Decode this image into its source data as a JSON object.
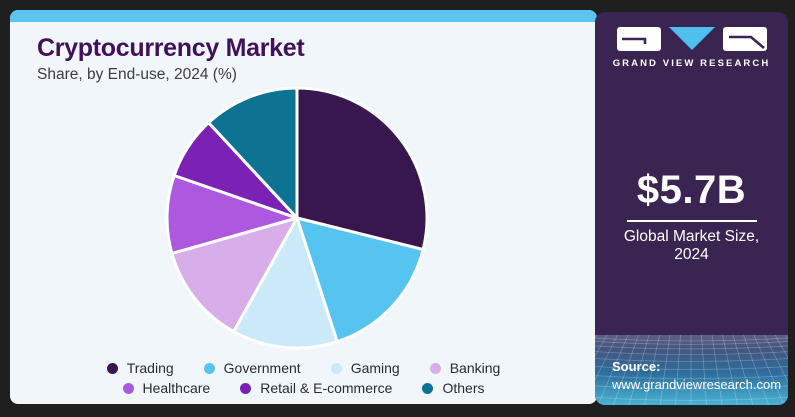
{
  "header": {
    "title": "Cryptocurrency Market",
    "subtitle": "Share, by End-use, 2024 (%)"
  },
  "chart_data": {
    "type": "pie",
    "title": "Cryptocurrency Market Share, by End-use, 2024 (%)",
    "unit": "%",
    "direction": "clockwise",
    "start_angle_deg": 0,
    "legend_position": "bottom",
    "separator_color": "#FFFFFF",
    "slices": [
      {
        "label": "Trading",
        "value": 28.9,
        "color": "#38164E"
      },
      {
        "label": "Government",
        "value": 16.1,
        "color": "#55C4F1"
      },
      {
        "label": "Gaming",
        "value": 13.1,
        "color": "#CBE9F8"
      },
      {
        "label": "Banking",
        "value": 12.5,
        "color": "#D7AEEA"
      },
      {
        "label": "Healthcare",
        "value": 9.7,
        "color": "#AC59E0"
      },
      {
        "label": "Retail & E-commerce",
        "value": 7.8,
        "color": "#7B22B5"
      },
      {
        "label": "Others",
        "value": 11.9,
        "color": "#0E7392"
      }
    ],
    "legend_rows": [
      [
        0,
        1,
        2,
        3
      ],
      [
        4,
        5,
        6
      ]
    ]
  },
  "sidebar": {
    "logo_text": "GRAND VIEW RESEARCH",
    "market_size": "$5.7B",
    "caption_line1": "Global Market Size,",
    "caption_line2": "2024",
    "source_label": "Source:",
    "source_url": "www.grandviewresearch.com"
  },
  "colors": {
    "frame": "#1F1F1F",
    "content_bg": "#F0F6FA",
    "accent_strip": "#5BC3EF",
    "title_text": "#411259",
    "sidebar_bg": "#3A2452",
    "logo_triangle": "#4FC0EE"
  }
}
